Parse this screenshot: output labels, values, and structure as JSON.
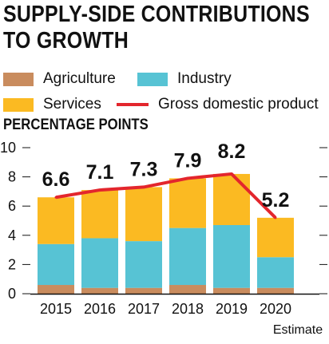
{
  "chart_data": {
    "type": "bar",
    "title": "SUPPLY-SIDE CONTRIBUTIONS TO GROWTH",
    "title_lines": [
      "SUPPLY-SIDE CONTRIBUTIONS",
      "TO GROWTH"
    ],
    "ylabel": "PERCENTAGE POINTS",
    "ylim": [
      0,
      10
    ],
    "yticks": [
      0,
      2,
      4,
      6,
      8,
      10
    ],
    "grid": false,
    "stacked": true,
    "categories": [
      "2015",
      "2016",
      "2017",
      "2018",
      "2019",
      "2020"
    ],
    "category_sublabels": [
      "",
      "",
      "",
      "",
      "",
      "Estimate"
    ],
    "series": [
      {
        "name": "Agriculture",
        "color": "#c98c5e",
        "values": [
          0.6,
          0.4,
          0.4,
          0.6,
          0.4,
          0.4
        ]
      },
      {
        "name": "Industry",
        "color": "#57c3d4",
        "values": [
          2.8,
          3.4,
          3.2,
          3.9,
          4.3,
          2.1
        ]
      },
      {
        "name": "Services",
        "color": "#fbba22",
        "values": [
          3.2,
          3.3,
          3.7,
          3.4,
          3.5,
          2.7
        ]
      },
      {
        "name": "Gross domestic product",
        "type": "line",
        "color": "#e3262d",
        "values": [
          6.6,
          7.1,
          7.3,
          7.9,
          8.2,
          5.2
        ]
      }
    ],
    "data_labels": [
      "6.6",
      "7.1",
      "7.3",
      "7.9",
      "8.2",
      "5.2"
    ],
    "legend_position": "top"
  }
}
